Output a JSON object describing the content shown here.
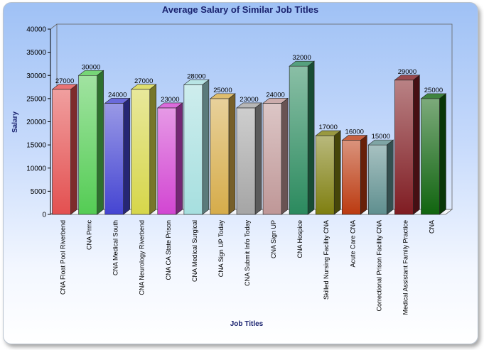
{
  "chart_data": {
    "type": "bar",
    "title": "Average Salary of Similar Job Titles",
    "xlabel": "Job Titles",
    "ylabel": "Salary",
    "ylim": [
      0,
      40000
    ],
    "yticks": [
      0,
      5000,
      10000,
      15000,
      20000,
      25000,
      30000,
      35000,
      40000
    ],
    "grid": false,
    "legend": "none",
    "three_d": true,
    "categories": [
      "CNA Float Pool Riverbend",
      "CNA Prmc",
      "CNA Medical South",
      "CNA Neurology Riverbend",
      "CNA CA State Prison",
      "CNA Medical Surgical",
      "CNA Sign UP Today",
      "CNA Submit Info Today",
      "CNA Sign UP",
      "CNA Hospice",
      "Skilled Nursing Facility CNA",
      "Acute Care CNA",
      "Correctional Prison Facility CNA",
      "Medical Assistant Family Practice",
      "CNA"
    ],
    "values": [
      27000,
      30000,
      24000,
      27000,
      23000,
      28000,
      25000,
      23000,
      24000,
      32000,
      17000,
      16000,
      15000,
      29000,
      25000
    ],
    "value_labels": [
      "27000",
      "30000",
      "24000",
      "27000",
      "23000",
      "28000",
      "25000",
      "23000",
      "24000",
      "32000",
      "17000",
      "16000",
      "15000",
      "29000",
      "25000"
    ],
    "colors": [
      "#e35050",
      "#54cc54",
      "#4545d2",
      "#d6d64a",
      "#d246d2",
      "#a6dfdf",
      "#d6ac4a",
      "#a5a5a5",
      "#bf9797",
      "#2b8a5e",
      "#7f7f10",
      "#bb3a10",
      "#5f8f8f",
      "#7f1c22",
      "#10640f"
    ]
  }
}
